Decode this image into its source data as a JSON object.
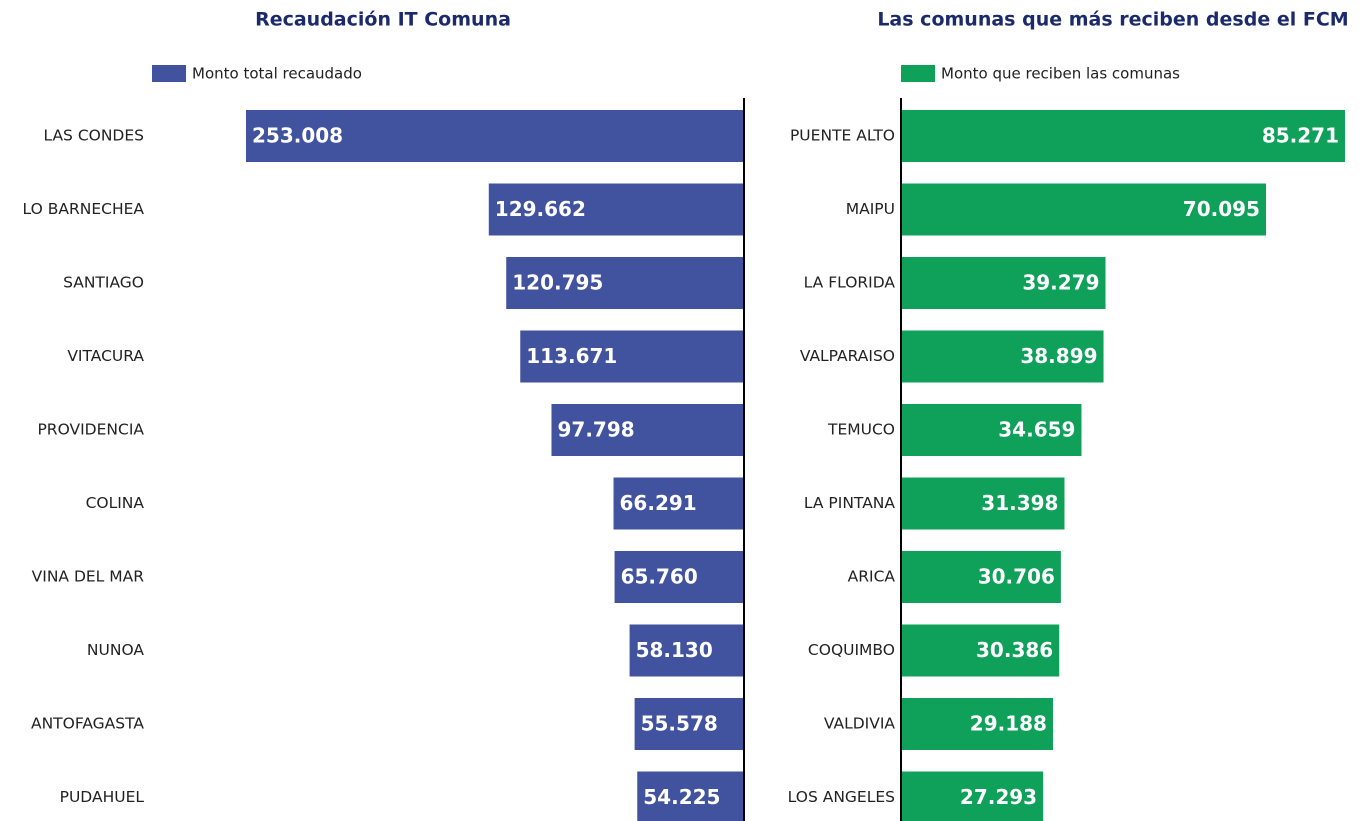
{
  "chart_data": [
    {
      "type": "bar",
      "title": "Recaudación IT Comuna",
      "categories": [
        "LAS CONDES",
        "LO BARNECHEA",
        "SANTIAGO",
        "VITACURA",
        "PROVIDENCIA",
        "COLINA",
        "VINA DEL MAR",
        "NUNOA",
        "ANTOFAGASTA",
        "PUDAHUEL"
      ],
      "series": [
        {
          "name": "Monto total recaudado",
          "color": "#41529f",
          "values": [
            253008,
            129662,
            120795,
            113671,
            97798,
            66291,
            65760,
            58130,
            55578,
            54225
          ],
          "value_labels": [
            "253.008",
            "129.662",
            "120.795",
            "113.671",
            "97.798",
            "66.291",
            "65.760",
            "58.130",
            "55.578",
            "54.225"
          ]
        }
      ]
    },
    {
      "type": "bar",
      "title": "Las comunas que más reciben desde el FCM",
      "categories": [
        "PUENTE ALTO",
        "MAIPU",
        "LA FLORIDA",
        "VALPARAISO",
        "TEMUCO",
        "LA PINTANA",
        "ARICA",
        "COQUIMBO",
        "VALDIVIA",
        "LOS ANGELES"
      ],
      "series": [
        {
          "name": "Monto que reciben las comunas",
          "color": "#0fa05a",
          "values": [
            85271,
            70095,
            39279,
            38899,
            34659,
            31398,
            30706,
            30386,
            29188,
            27293
          ],
          "value_labels": [
            "85.271",
            "70.095",
            "39.279",
            "38.899",
            "34.659",
            "31.398",
            "30.706",
            "30.386",
            "29.188",
            "27.293"
          ]
        }
      ]
    }
  ]
}
